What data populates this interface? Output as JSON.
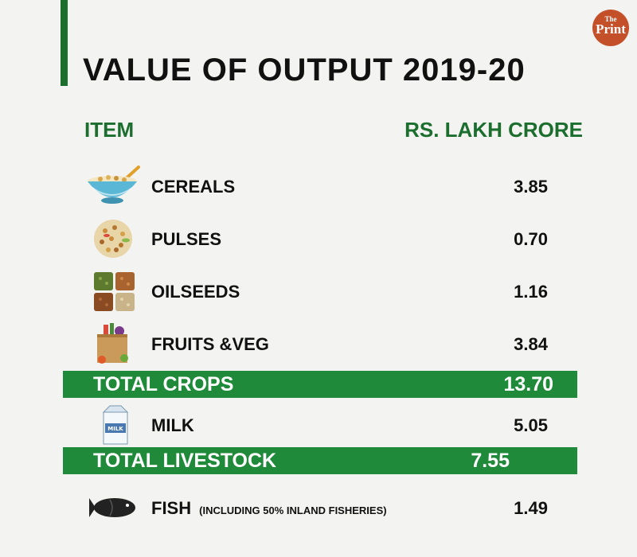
{
  "title": "VALUE OF OUTPUT 2019-20",
  "logo": {
    "line1": "The",
    "line2": "Print"
  },
  "headers": {
    "item": "ITEM",
    "value": "RS. LAKH CRORE"
  },
  "colors": {
    "green": "#1b6e2e",
    "band": "#1e8a3a",
    "logo": "#c4502a"
  },
  "rows": [
    {
      "label": "CEREALS",
      "value": "3.85",
      "icon": "cereal-bowl-icon"
    },
    {
      "label": "PULSES",
      "value": "0.70",
      "icon": "pulses-icon"
    },
    {
      "label": "OILSEEDS",
      "value": "1.16",
      "icon": "oilseeds-icon"
    },
    {
      "label": "FRUITS &VEG",
      "value": "3.84",
      "icon": "grocery-bag-icon"
    },
    {
      "label": "MILK",
      "value": "5.05",
      "icon": "milk-carton-icon"
    },
    {
      "label": "FISH",
      "note": "(INCLUDING 50% INLAND FISHERIES)",
      "value": "1.49",
      "icon": "fish-icon"
    }
  ],
  "totals": [
    {
      "label": "TOTAL CROPS",
      "value": "13.70"
    },
    {
      "label": "TOTAL LIVESTOCK",
      "value": "7.55"
    }
  ],
  "chart_data": {
    "type": "table",
    "title": "VALUE OF OUTPUT 2019-20",
    "columns": [
      "ITEM",
      "RS. LAKH CRORE"
    ],
    "rows": [
      [
        "CEREALS",
        3.85
      ],
      [
        "PULSES",
        0.7
      ],
      [
        "OILSEEDS",
        1.16
      ],
      [
        "FRUITS &VEG",
        3.84
      ],
      [
        "TOTAL CROPS",
        13.7
      ],
      [
        "MILK",
        5.05
      ],
      [
        "TOTAL LIVESTOCK",
        7.55
      ],
      [
        "FISH (INCLUDING 50% INLAND FISHERIES)",
        1.49
      ]
    ]
  }
}
